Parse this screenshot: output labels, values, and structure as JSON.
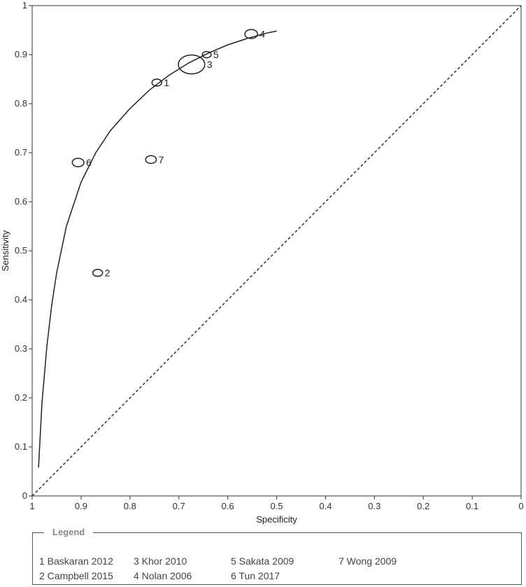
{
  "chart_data": {
    "type": "scatter",
    "xlabel": "Specificity",
    "ylabel": "Sensitivity",
    "xlim": [
      1,
      0
    ],
    "ylim": [
      0,
      1
    ],
    "x_ticks": [
      "1",
      "0.9",
      "0.8",
      "0.7",
      "0.6",
      "0.5",
      "0.4",
      "0.3",
      "0.2",
      "0.1",
      "0"
    ],
    "y_ticks": [
      "0",
      "0.1",
      "0.2",
      "0.3",
      "0.4",
      "0.5",
      "0.6",
      "0.7",
      "0.8",
      "0.9",
      "1"
    ],
    "points": [
      {
        "label": "1",
        "specificity": 0.745,
        "sensitivity": 0.843,
        "weight": 1.0
      },
      {
        "label": "2",
        "specificity": 0.866,
        "sensitivity": 0.455,
        "weight": 1.0
      },
      {
        "label": "3",
        "specificity": 0.674,
        "sensitivity": 0.88,
        "weight": 2.7
      },
      {
        "label": "4",
        "specificity": 0.552,
        "sensitivity": 0.942,
        "weight": 1.3
      },
      {
        "label": "5",
        "specificity": 0.643,
        "sensitivity": 0.9,
        "weight": 0.9
      },
      {
        "label": "6",
        "specificity": 0.906,
        "sensitivity": 0.68,
        "weight": 1.2
      },
      {
        "label": "7",
        "specificity": 0.757,
        "sensitivity": 0.686,
        "weight": 1.1
      }
    ],
    "sroc_curve": {
      "specificity": [
        0.987,
        0.98,
        0.97,
        0.96,
        0.95,
        0.93,
        0.9,
        0.87,
        0.84,
        0.8,
        0.76,
        0.72,
        0.68,
        0.64,
        0.6,
        0.56,
        0.52,
        0.5
      ],
      "sensitivity": [
        0.058,
        0.19,
        0.305,
        0.39,
        0.455,
        0.55,
        0.64,
        0.7,
        0.745,
        0.79,
        0.828,
        0.858,
        0.883,
        0.903,
        0.92,
        0.933,
        0.944,
        0.948
      ]
    },
    "reference_line": {
      "from": [
        1,
        0
      ],
      "to": [
        0,
        1
      ]
    }
  },
  "legend": {
    "title": "Legend",
    "items": [
      "1 Baskaran 2012",
      "2 Campbell 2015",
      "3 Khor 2010",
      "4 Nolan 2006",
      "5 Sakata 2009",
      "6 Tun 2017",
      "7 Wong 2009"
    ]
  }
}
